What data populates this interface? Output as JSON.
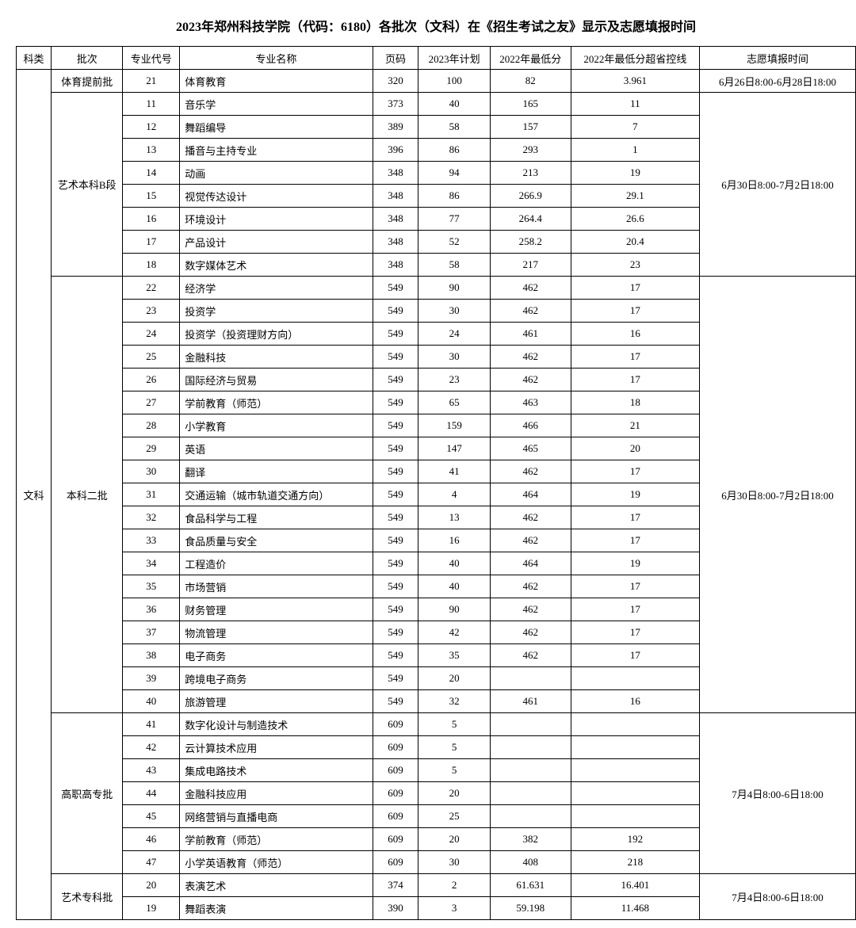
{
  "title": "2023年郑州科技学院（代码：6180）各批次（文科）在《招生考试之友》显示及志愿填报时间",
  "headers": {
    "subject": "科类",
    "batch": "批次",
    "major_code": "专业代号",
    "major_name": "专业名称",
    "page": "页码",
    "plan2023": "2023年计划",
    "min2022": "2022年最低分",
    "diff2022": "2022年最低分超省控线",
    "apply_time": "志愿填报时间"
  },
  "subject_label": "文科",
  "groups": [
    {
      "batch": "体育提前批",
      "apply_time": "6月26日8:00-6月28日18:00",
      "rows": [
        {
          "code": "21",
          "name": "体育教育",
          "page": "320",
          "plan": "100",
          "min": "82",
          "diff": "3.961"
        }
      ]
    },
    {
      "batch": "艺术本科B段",
      "apply_time": "6月30日8:00-7月2日18:00",
      "rows": [
        {
          "code": "11",
          "name": "音乐学",
          "page": "373",
          "plan": "40",
          "min": "165",
          "diff": "11"
        },
        {
          "code": "12",
          "name": "舞蹈编导",
          "page": "389",
          "plan": "58",
          "min": "157",
          "diff": "7"
        },
        {
          "code": "13",
          "name": "播音与主持专业",
          "page": "396",
          "plan": "86",
          "min": "293",
          "diff": "1"
        },
        {
          "code": "14",
          "name": "动画",
          "page": "348",
          "plan": "94",
          "min": "213",
          "diff": "19"
        },
        {
          "code": "15",
          "name": "视觉传达设计",
          "page": "348",
          "plan": "86",
          "min": "266.9",
          "diff": "29.1"
        },
        {
          "code": "16",
          "name": "环境设计",
          "page": "348",
          "plan": "77",
          "min": "264.4",
          "diff": "26.6"
        },
        {
          "code": "17",
          "name": "产品设计",
          "page": "348",
          "plan": "52",
          "min": "258.2",
          "diff": "20.4"
        },
        {
          "code": "18",
          "name": "数字媒体艺术",
          "page": "348",
          "plan": "58",
          "min": "217",
          "diff": "23"
        }
      ]
    },
    {
      "batch": "本科二批",
      "apply_time": "6月30日8:00-7月2日18:00",
      "rows": [
        {
          "code": "22",
          "name": "经济学",
          "page": "549",
          "plan": "90",
          "min": "462",
          "diff": "17"
        },
        {
          "code": "23",
          "name": "投资学",
          "page": "549",
          "plan": "30",
          "min": "462",
          "diff": "17"
        },
        {
          "code": "24",
          "name": "投资学（投资理财方向）",
          "page": "549",
          "plan": "24",
          "min": "461",
          "diff": "16"
        },
        {
          "code": "25",
          "name": "金融科技",
          "page": "549",
          "plan": "30",
          "min": "462",
          "diff": "17"
        },
        {
          "code": "26",
          "name": "国际经济与贸易",
          "page": "549",
          "plan": "23",
          "min": "462",
          "diff": "17"
        },
        {
          "code": "27",
          "name": "学前教育（师范）",
          "page": "549",
          "plan": "65",
          "min": "463",
          "diff": "18"
        },
        {
          "code": "28",
          "name": "小学教育",
          "page": "549",
          "plan": "159",
          "min": "466",
          "diff": "21"
        },
        {
          "code": "29",
          "name": "英语",
          "page": "549",
          "plan": "147",
          "min": "465",
          "diff": "20"
        },
        {
          "code": "30",
          "name": "翻译",
          "page": "549",
          "plan": "41",
          "min": "462",
          "diff": "17"
        },
        {
          "code": "31",
          "name": "交通运输（城市轨道交通方向）",
          "page": "549",
          "plan": "4",
          "min": "464",
          "diff": "19"
        },
        {
          "code": "32",
          "name": "食品科学与工程",
          "page": "549",
          "plan": "13",
          "min": "462",
          "diff": "17"
        },
        {
          "code": "33",
          "name": "食品质量与安全",
          "page": "549",
          "plan": "16",
          "min": "462",
          "diff": "17"
        },
        {
          "code": "34",
          "name": "工程造价",
          "page": "549",
          "plan": "40",
          "min": "464",
          "diff": "19"
        },
        {
          "code": "35",
          "name": "市场营销",
          "page": "549",
          "plan": "40",
          "min": "462",
          "diff": "17"
        },
        {
          "code": "36",
          "name": "财务管理",
          "page": "549",
          "plan": "90",
          "min": "462",
          "diff": "17"
        },
        {
          "code": "37",
          "name": "物流管理",
          "page": "549",
          "plan": "42",
          "min": "462",
          "diff": "17"
        },
        {
          "code": "38",
          "name": "电子商务",
          "page": "549",
          "plan": "35",
          "min": "462",
          "diff": "17"
        },
        {
          "code": "39",
          "name": "跨境电子商务",
          "page": "549",
          "plan": "20",
          "min": "",
          "diff": ""
        },
        {
          "code": "40",
          "name": "旅游管理",
          "page": "549",
          "plan": "32",
          "min": "461",
          "diff": "16"
        }
      ]
    },
    {
      "batch": "高职高专批",
      "apply_time": "7月4日8:00-6日18:00",
      "rows": [
        {
          "code": "41",
          "name": "数字化设计与制造技术",
          "page": "609",
          "plan": "5",
          "min": "",
          "diff": ""
        },
        {
          "code": "42",
          "name": "云计算技术应用",
          "page": "609",
          "plan": "5",
          "min": "",
          "diff": ""
        },
        {
          "code": "43",
          "name": "集成电路技术",
          "page": "609",
          "plan": "5",
          "min": "",
          "diff": ""
        },
        {
          "code": "44",
          "name": "金融科技应用",
          "page": "609",
          "plan": "20",
          "min": "",
          "diff": ""
        },
        {
          "code": "45",
          "name": "网络营销与直播电商",
          "page": "609",
          "plan": "25",
          "min": "",
          "diff": ""
        },
        {
          "code": "46",
          "name": "学前教育（师范）",
          "page": "609",
          "plan": "20",
          "min": "382",
          "diff": "192"
        },
        {
          "code": "47",
          "name": "小学英语教育（师范）",
          "page": "609",
          "plan": "30",
          "min": "408",
          "diff": "218"
        }
      ]
    },
    {
      "batch": "艺术专科批",
      "apply_time": "7月4日8:00-6日18:00",
      "rows": [
        {
          "code": "20",
          "name": "表演艺术",
          "page": "374",
          "plan": "2",
          "min": "61.631",
          "diff": "16.401"
        },
        {
          "code": "19",
          "name": "舞蹈表演",
          "page": "390",
          "plan": "3",
          "min": "59.198",
          "diff": "11.468"
        }
      ]
    }
  ]
}
